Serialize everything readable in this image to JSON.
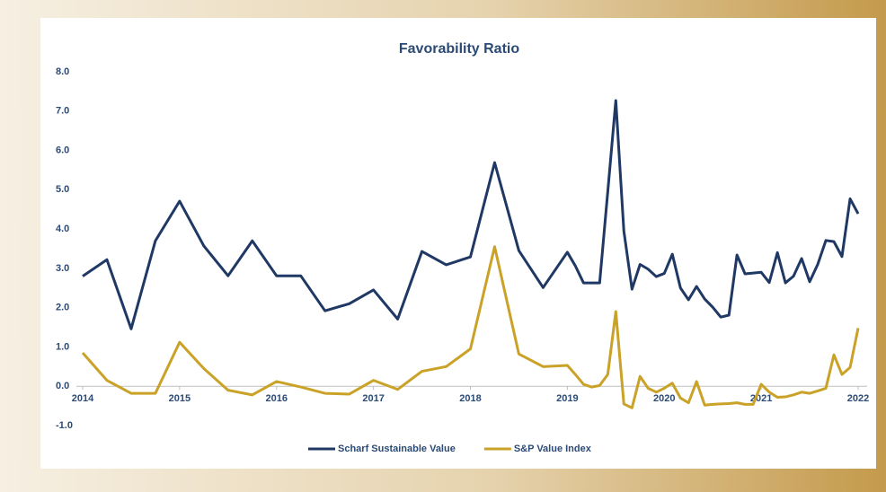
{
  "chart_data": {
    "type": "line",
    "title": "Favorability Ratio",
    "x": [
      2014,
      2014.25,
      2014.5,
      2014.75,
      2015,
      2015.25,
      2015.5,
      2015.75,
      2016,
      2016.25,
      2016.5,
      2016.75,
      2017,
      2017.25,
      2017.5,
      2017.75,
      2018,
      2018.25,
      2018.5,
      2018.75,
      2019,
      2019.083,
      2019.167,
      2019.25,
      2019.333,
      2019.417,
      2019.5,
      2019.583,
      2019.667,
      2019.75,
      2019.833,
      2019.917,
      2020,
      2020.083,
      2020.167,
      2020.25,
      2020.333,
      2020.417,
      2020.5,
      2020.583,
      2020.667,
      2020.75,
      2020.833,
      2020.917,
      2021,
      2021.083,
      2021.167,
      2021.25,
      2021.333,
      2021.417,
      2021.5,
      2021.583,
      2021.667,
      2021.75,
      2021.833,
      2021.917,
      2022
    ],
    "series": [
      {
        "name": "Scharf Sustainable Value",
        "color": "#1f3864",
        "values": [
          2.8,
          3.22,
          1.46,
          3.7,
          4.71,
          3.57,
          2.81,
          3.7,
          2.81,
          2.81,
          1.92,
          2.1,
          2.45,
          1.71,
          3.43,
          3.09,
          3.29,
          5.69,
          3.45,
          2.51,
          3.41,
          3.06,
          2.63,
          2.63,
          2.63,
          4.95,
          7.27,
          3.95,
          2.47,
          3.1,
          2.98,
          2.79,
          2.87,
          3.36,
          2.5,
          2.2,
          2.54,
          2.22,
          2.01,
          1.76,
          1.81,
          3.34,
          2.86,
          2.88,
          2.9,
          2.64,
          3.4,
          2.63,
          2.8,
          3.25,
          2.66,
          3.1,
          3.71,
          3.68,
          3.3,
          4.77,
          4.39
        ]
      },
      {
        "name": "S&P Value Index",
        "color": "#c9a227",
        "values": [
          0.85,
          0.15,
          -0.18,
          -0.18,
          1.12,
          0.45,
          -0.1,
          -0.22,
          0.12,
          -0.02,
          -0.18,
          -0.2,
          0.15,
          -0.08,
          0.38,
          0.5,
          0.95,
          3.55,
          0.82,
          0.5,
          0.53,
          0.3,
          0.05,
          -0.02,
          0.02,
          0.3,
          1.9,
          -0.45,
          -0.55,
          0.25,
          -0.05,
          -0.15,
          -0.05,
          0.08,
          -0.3,
          -0.42,
          0.12,
          -0.48,
          -0.46,
          -0.45,
          -0.44,
          -0.42,
          -0.46,
          -0.46,
          0.05,
          -0.15,
          -0.28,
          -0.27,
          -0.22,
          -0.15,
          -0.18,
          -0.12,
          -0.05,
          0.8,
          0.3,
          0.48,
          1.48
        ]
      }
    ],
    "xlim": [
      2014,
      2022
    ],
    "xticks": [
      2014,
      2015,
      2016,
      2017,
      2018,
      2019,
      2020,
      2021,
      2022
    ],
    "ylim": [
      -1,
      8
    ],
    "yticks": [
      {
        "value": -1,
        "label": "-1.0"
      },
      {
        "value": 0,
        "label": "0.0"
      },
      {
        "value": 1,
        "label": "1.0"
      },
      {
        "value": 2,
        "label": "2.0"
      },
      {
        "value": 3,
        "label": "3.0"
      },
      {
        "value": 4,
        "label": "4.0"
      },
      {
        "value": 5,
        "label": "5.0"
      },
      {
        "value": 6,
        "label": "6.0"
      },
      {
        "value": 7,
        "label": "7.0"
      },
      {
        "value": 8,
        "label": "8.0"
      }
    ],
    "grid": false,
    "legend": "bottom"
  }
}
